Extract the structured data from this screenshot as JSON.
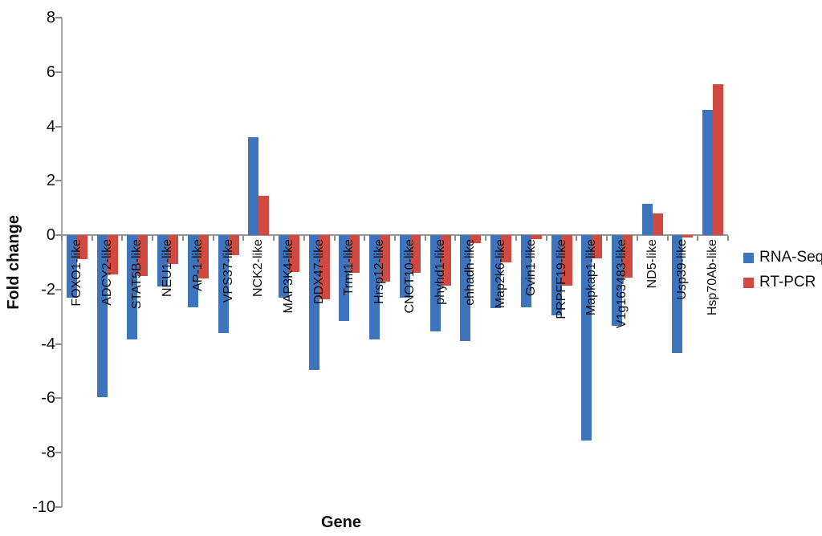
{
  "chart_data": {
    "type": "bar",
    "title": "",
    "xlabel": "Gene",
    "ylabel": "Fold change",
    "ylim": [
      -10,
      8
    ],
    "yticks": [
      8,
      6,
      4,
      2,
      0,
      -2,
      -4,
      -6,
      -8,
      -10
    ],
    "grid": false,
    "legend_position": "right",
    "categories": [
      "FOXO1-like",
      "ADCY2-like",
      "STAT5B-like",
      "NEU1-like",
      "AP-1-like",
      "VPS37-like",
      "NCK2-like",
      "MAP3K4-like",
      "DDX47-like",
      "Trmt1-like",
      "Hrsp12-like",
      "CNOT10-like",
      "phyhd1-like",
      "ehhadh-like",
      "Map2k6-like",
      "Gvin1-like",
      "PRPFF19-like",
      "Mapkap1-like",
      "V1g163483-like",
      "ND5-like",
      "Usp39-like",
      "Hsp70Ab-like"
    ],
    "series": [
      {
        "name": "RNA-Seq",
        "color": "#3E74BE",
        "values": [
          -2.3,
          -5.95,
          -3.85,
          -1.9,
          -2.65,
          -3.6,
          3.6,
          -2.3,
          -4.95,
          -3.15,
          -3.85,
          -2.3,
          -3.55,
          -3.9,
          -2.7,
          -2.65,
          -2.95,
          -7.55,
          -3.35,
          1.15,
          -4.35,
          4.6
        ]
      },
      {
        "name": "RT-PCR",
        "color": "#D04A42",
        "values": [
          -0.9,
          -1.45,
          -1.5,
          -1.05,
          -1.6,
          -0.75,
          1.45,
          -1.35,
          -2.35,
          -1.4,
          -1.7,
          -1.4,
          -1.85,
          -0.3,
          -1.0,
          -0.15,
          -1.85,
          -0.85,
          -1.55,
          0.8,
          -0.1,
          5.55
        ]
      }
    ]
  }
}
